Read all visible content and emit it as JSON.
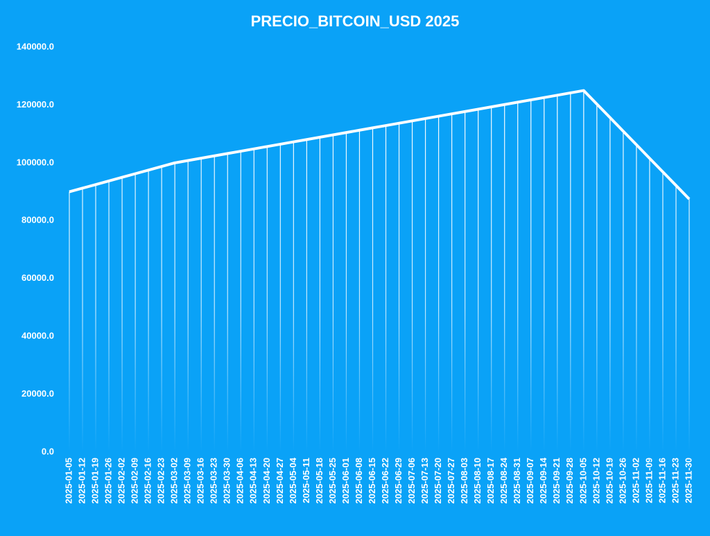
{
  "chart_data": {
    "type": "line",
    "title": "PRECIO_BITCOIN_USD 2025",
    "color": "#ffffff",
    "categories": [
      "2025-01-05",
      "2025-01-12",
      "2025-01-19",
      "2025-01-26",
      "2025-02-02",
      "2025-02-09",
      "2025-02-16",
      "2025-02-23",
      "2025-03-02",
      "2025-03-09",
      "2025-03-16",
      "2025-03-23",
      "2025-03-30",
      "2025-04-06",
      "2025-04-13",
      "2025-04-20",
      "2025-04-27",
      "2025-05-04",
      "2025-05-11",
      "2025-05-18",
      "2025-05-25",
      "2025-06-01",
      "2025-06-08",
      "2025-06-15",
      "2025-06-22",
      "2025-06-29",
      "2025-07-06",
      "2025-07-13",
      "2025-07-20",
      "2025-07-27",
      "2025-08-03",
      "2025-08-10",
      "2025-08-17",
      "2025-08-24",
      "2025-08-31",
      "2025-09-07",
      "2025-09-14",
      "2025-09-21",
      "2025-09-28",
      "2025-10-05",
      "2025-10-12",
      "2025-10-19",
      "2025-10-26",
      "2025-11-02",
      "2025-11-09",
      "2025-11-16",
      "2025-11-23",
      "2025-11-30"
    ],
    "values": [
      90000,
      91250,
      92500,
      93750,
      95000,
      96250,
      97500,
      98750,
      100000,
      100810,
      101610,
      102420,
      103230,
      104030,
      104840,
      105650,
      106450,
      107260,
      108060,
      108870,
      109680,
      110480,
      111290,
      112100,
      112900,
      113710,
      114520,
      115320,
      116130,
      116940,
      117740,
      118550,
      119350,
      120160,
      120970,
      121770,
      122580,
      123390,
      124190,
      125000,
      120310,
      115630,
      110940,
      106250,
      101560,
      96880,
      92190,
      87500
    ],
    "ylim": [
      0,
      140000
    ],
    "yticks": [
      {
        "value": 0,
        "label": "0.0"
      },
      {
        "value": 20000,
        "label": "20000.0"
      },
      {
        "value": 40000,
        "label": "40000.0"
      },
      {
        "value": 60000,
        "label": "60000.0"
      },
      {
        "value": 80000,
        "label": "80000.0"
      },
      {
        "value": 100000,
        "label": "100000.0"
      },
      {
        "value": 120000,
        "label": "120000.0"
      },
      {
        "value": 140000,
        "label": "140000.0"
      }
    ],
    "drop_lines": true
  }
}
